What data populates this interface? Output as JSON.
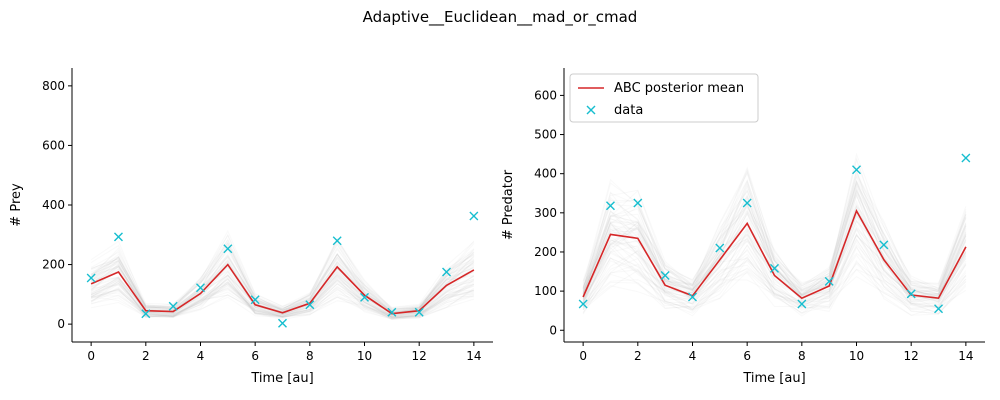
{
  "figure_title": "Adaptive__Euclidean__mad_or_cmad",
  "colors": {
    "posterior_mean": "#d62728",
    "data_marker": "#17becf",
    "samples": "#bbbbbb",
    "axis": "#000000"
  },
  "chart_data": [
    {
      "type": "line",
      "title": "",
      "xlabel": "Time [au]",
      "ylabel": "# Prey",
      "xlim": [
        -0.7,
        14.7
      ],
      "ylim": [
        -60,
        860
      ],
      "xticks": [
        0,
        2,
        4,
        6,
        8,
        10,
        12,
        14
      ],
      "yticks": [
        0,
        200,
        400,
        600,
        800
      ],
      "grid": false,
      "legend": null,
      "x": [
        0,
        1,
        2,
        3,
        4,
        5,
        6,
        7,
        8,
        9,
        10,
        11,
        12,
        13,
        14
      ],
      "series": [
        {
          "name": "ABC posterior mean",
          "kind": "line",
          "values": [
            135,
            175,
            45,
            42,
            103,
            200,
            65,
            38,
            70,
            192,
            97,
            35,
            45,
            130,
            182
          ]
        },
        {
          "name": "data",
          "kind": "markers",
          "values": [
            155,
            293,
            35,
            60,
            122,
            253,
            82,
            3,
            65,
            280,
            90,
            40,
            40,
            175,
            363
          ]
        }
      ]
    },
    {
      "type": "line",
      "title": "",
      "xlabel": "Time [au]",
      "ylabel": "# Predator",
      "xlim": [
        -0.7,
        14.7
      ],
      "ylim": [
        -30,
        670
      ],
      "xticks": [
        0,
        2,
        4,
        6,
        8,
        10,
        12,
        14
      ],
      "yticks": [
        0,
        100,
        200,
        300,
        400,
        500,
        600
      ],
      "grid": false,
      "legend": "top-left",
      "x": [
        0,
        1,
        2,
        3,
        4,
        5,
        6,
        7,
        8,
        9,
        10,
        11,
        12,
        13,
        14
      ],
      "series": [
        {
          "name": "ABC posterior mean",
          "kind": "line",
          "values": [
            85,
            245,
            235,
            115,
            88,
            180,
            273,
            140,
            82,
            113,
            305,
            180,
            90,
            82,
            213
          ]
        },
        {
          "name": "data",
          "kind": "markers",
          "values": [
            67,
            318,
            325,
            140,
            85,
            210,
            325,
            158,
            67,
            125,
            410,
            218,
            93,
            55,
            440
          ]
        }
      ]
    }
  ]
}
